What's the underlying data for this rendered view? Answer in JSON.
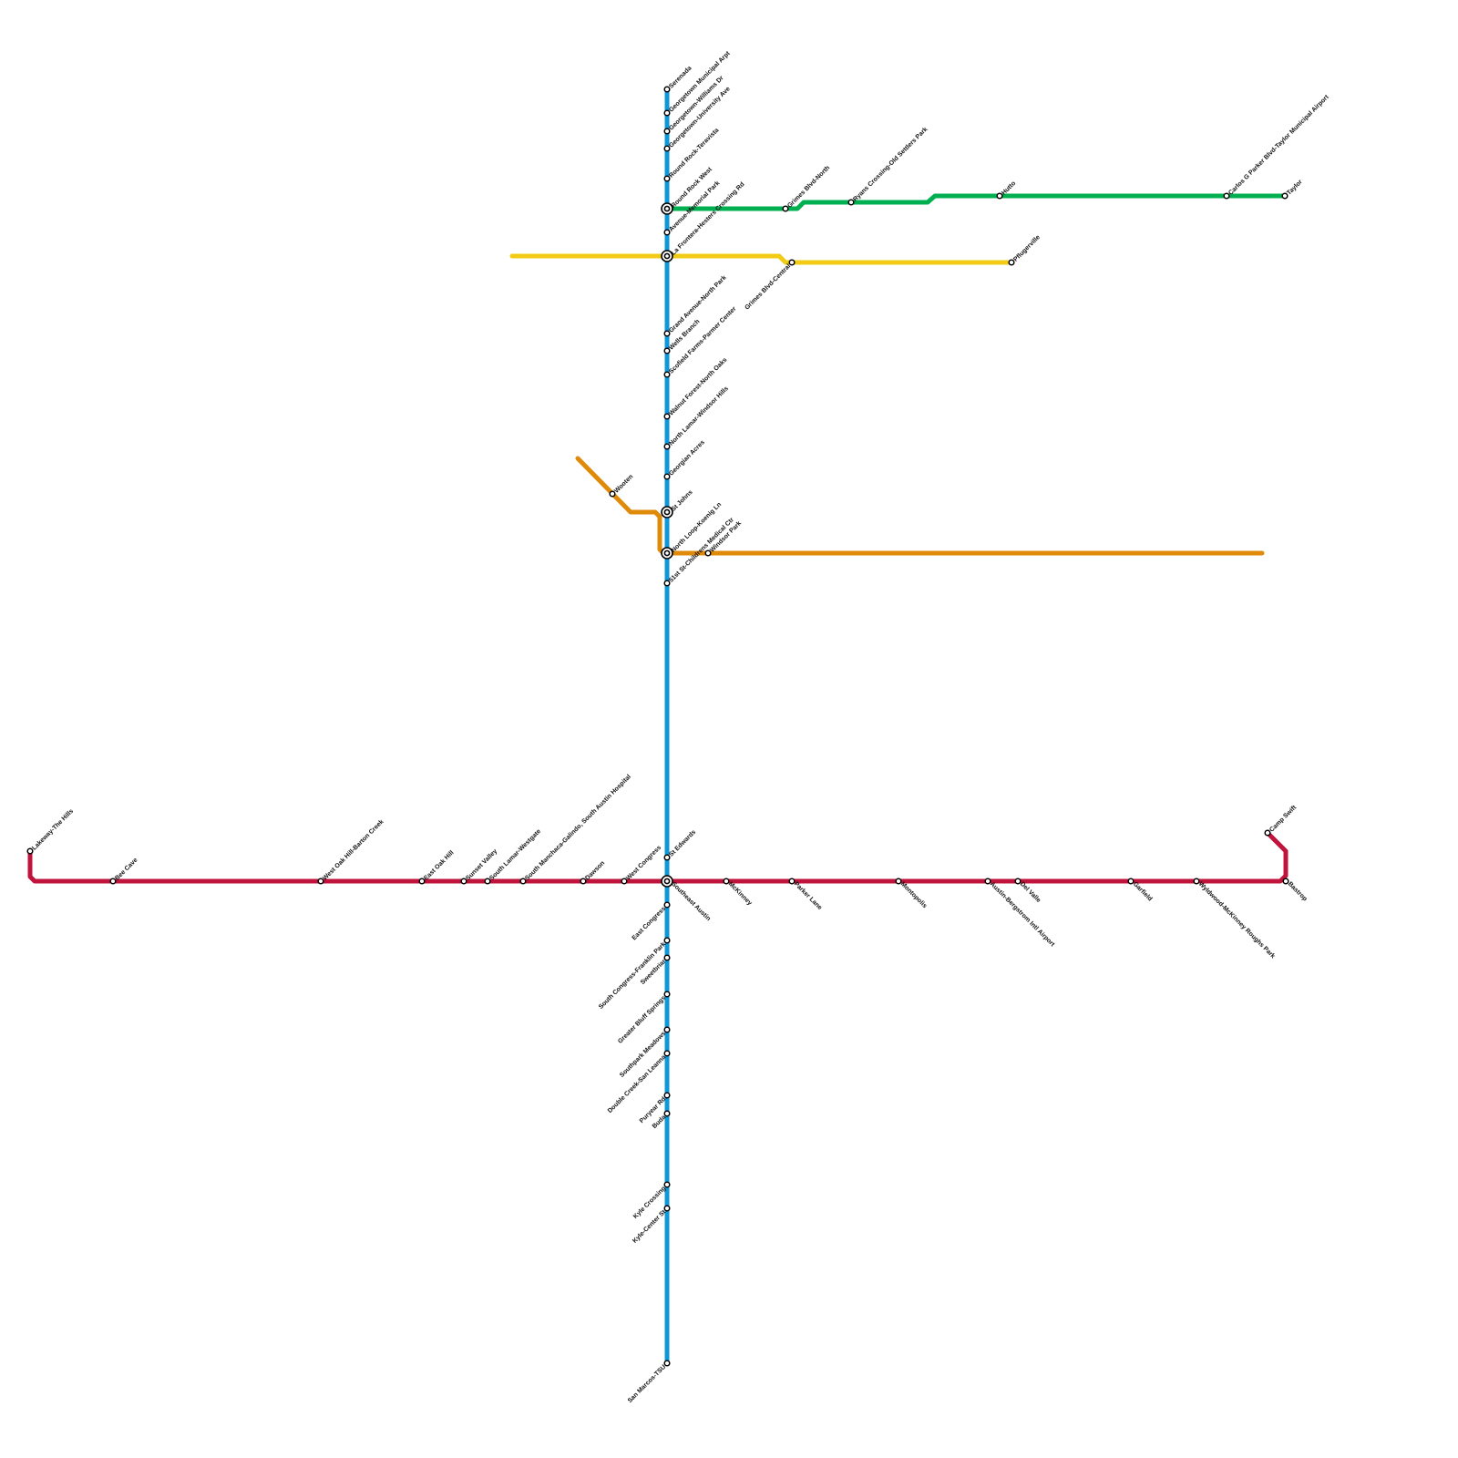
{
  "colors": {
    "blue": "#0e98da",
    "green": "#00b050",
    "yellow": "#f2cc14",
    "orange": "#e08a0a",
    "red": "#c0143c",
    "station_stroke": "#000000",
    "station_fill": "#ffffff"
  },
  "stations": [
    "Serenada",
    "Georgetown Municipal Arpt",
    "Georgetown-Williams Dr",
    "Georgetown-University Ave",
    "Round Rock-Teravista",
    "Round Rock West",
    "Avenue-Memorial Park",
    "La Frontera-Hesters Crossing Rd",
    "Grand Avenue-North Park",
    "Wells Branch",
    "Scofield Farms-Parmer Center",
    "Walnut Forest-North Oaks",
    "North Lamar-Windsor Hills",
    "Georgian Acres",
    "St Johns",
    "North Loop-Koenig Ln",
    "51st St-Childrens Medical Ctr",
    "St Edwards",
    "Southeast Austin",
    "East Congress",
    "South Congress-Franklin Park",
    "Sweetbriar",
    "Greater Bluff Springs",
    "Southpark Meadows",
    "Double Creek-San Leanna",
    "Puryear Rd",
    "Buda",
    "Kyle Crossing",
    "Kyle-Center St",
    "San Marcos-TSU",
    "Grimes Blvd-North",
    "Ryans Crossing-Old Settlers Park",
    "Hutto",
    "Carlos G Parker Blvd-Taylor Municipal Airport",
    "Taylor",
    "Grimes Blvd-Central",
    "Pflugerville",
    "Wooten",
    "Windsor Park",
    "Lakeway-The Hills",
    "Bee Cave",
    "West Oak Hill-Barton Creek",
    "East Oak Hill",
    "Sunset Valley",
    "South Lamar-Westgate",
    "South Manchaca-Galindo, South Austin Hospital",
    "Dawson",
    "West Congress",
    "McKinney",
    "Parker Lane",
    "Montopolis",
    "Austin-Bergstrom Intl Airport",
    "Del Valle",
    "Garfield",
    "Wyldwood-McKinney Roughs Park",
    "Bastrop",
    "Camp Swift"
  ]
}
